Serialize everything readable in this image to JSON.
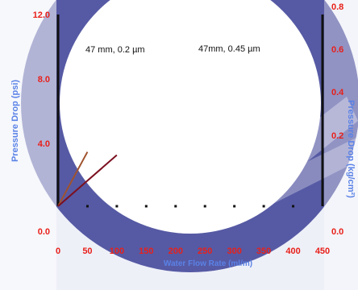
{
  "chart_data": {
    "type": "line",
    "xlabel": "Water  Flow Rate (ml/m)",
    "ylabel": "Pressure Drop (psi)",
    "y2label": "Pressure Drop (kg/cm²)",
    "x_ticks": [
      "0",
      "50",
      "100",
      "150",
      "200",
      "250",
      "300",
      "350",
      "400",
      "450"
    ],
    "y_ticks": [
      "0.0",
      "4.0",
      "8.0",
      "12.0"
    ],
    "y2_ticks": [
      "0.0",
      "0.2",
      "0.4",
      "0.6",
      "0.8"
    ],
    "xlim": [
      0,
      450
    ],
    "ylim": [
      0,
      12
    ],
    "y2lim": [
      0,
      0.8
    ],
    "series": [
      {
        "name": "47 mm,  0.2 µm",
        "color": "#a0522d",
        "x": [
          0,
          50
        ],
        "y": [
          0,
          3.4
        ]
      },
      {
        "name": "47mm,  0.45 µm",
        "color": "#7b1020",
        "x": [
          0,
          100
        ],
        "y": [
          0,
          3.2
        ]
      }
    ],
    "dotted_baseline": {
      "y": 0,
      "x": [
        50,
        100,
        150,
        200,
        250,
        300,
        350,
        400
      ]
    },
    "colors": {
      "tick_labels": "#e8201a",
      "axis_title": "#5a82e6",
      "watermark": "#3b3f95"
    }
  }
}
